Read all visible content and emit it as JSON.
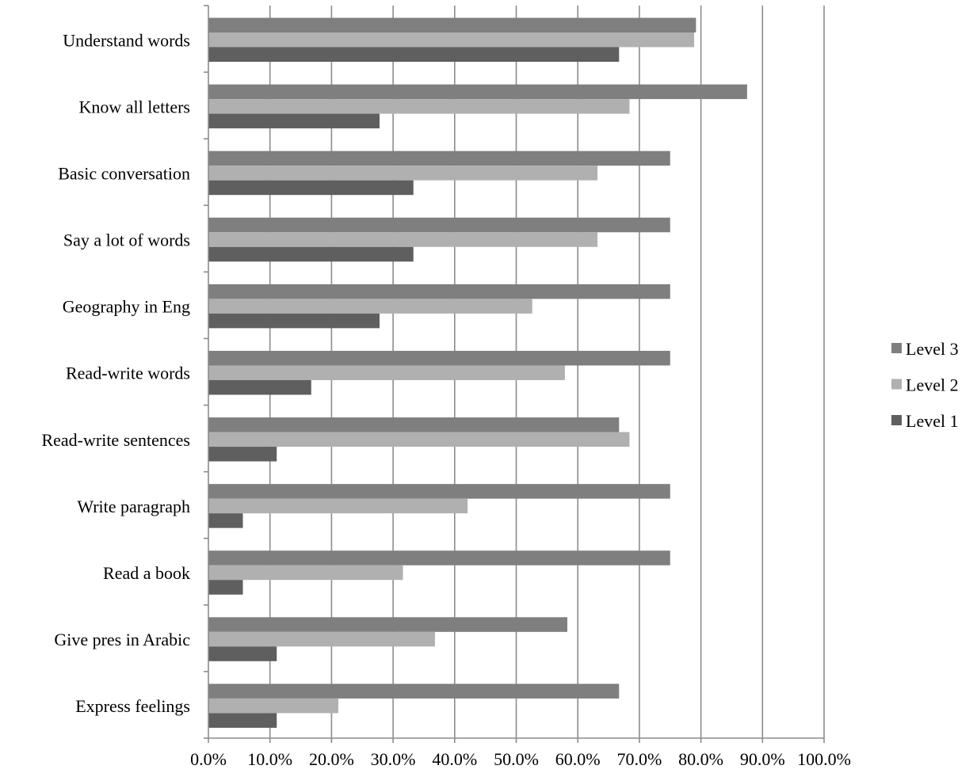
{
  "chart_data": {
    "type": "bar",
    "orientation": "horizontal",
    "title": "",
    "xlabel": "",
    "ylabel": "",
    "xlim": [
      0,
      100
    ],
    "x_ticks": [
      "0.0%",
      "10.0%",
      "20.0%",
      "30.0%",
      "40.0%",
      "50.0%",
      "60.0%",
      "70.0%",
      "80.0%",
      "90.0%",
      "100.0%"
    ],
    "grid": "vertical",
    "legend_position": "right",
    "categories": [
      "Understand words",
      "Know all letters",
      "Basic conversation",
      "Say a lot of words",
      "Geography in Eng",
      "Read-write words",
      "Read-write sentences",
      "Write paragraph",
      "Read a book",
      "Give pres in Arabic",
      "Express feelings"
    ],
    "series": [
      {
        "name": "Level 3",
        "color": "#7f7f7f",
        "values": [
          79.2,
          87.5,
          75.0,
          75.0,
          75.0,
          75.0,
          66.7,
          75.0,
          75.0,
          58.3,
          66.7
        ]
      },
      {
        "name": "Level 2",
        "color": "#b0b0b0",
        "values": [
          78.9,
          68.4,
          63.2,
          63.2,
          52.6,
          57.9,
          68.4,
          42.1,
          31.6,
          36.8,
          21.1
        ]
      },
      {
        "name": "Level 1",
        "color": "#5f5f5f",
        "values": [
          66.7,
          27.8,
          33.3,
          33.3,
          27.8,
          16.7,
          11.1,
          5.6,
          5.6,
          11.1,
          11.1
        ]
      }
    ]
  }
}
